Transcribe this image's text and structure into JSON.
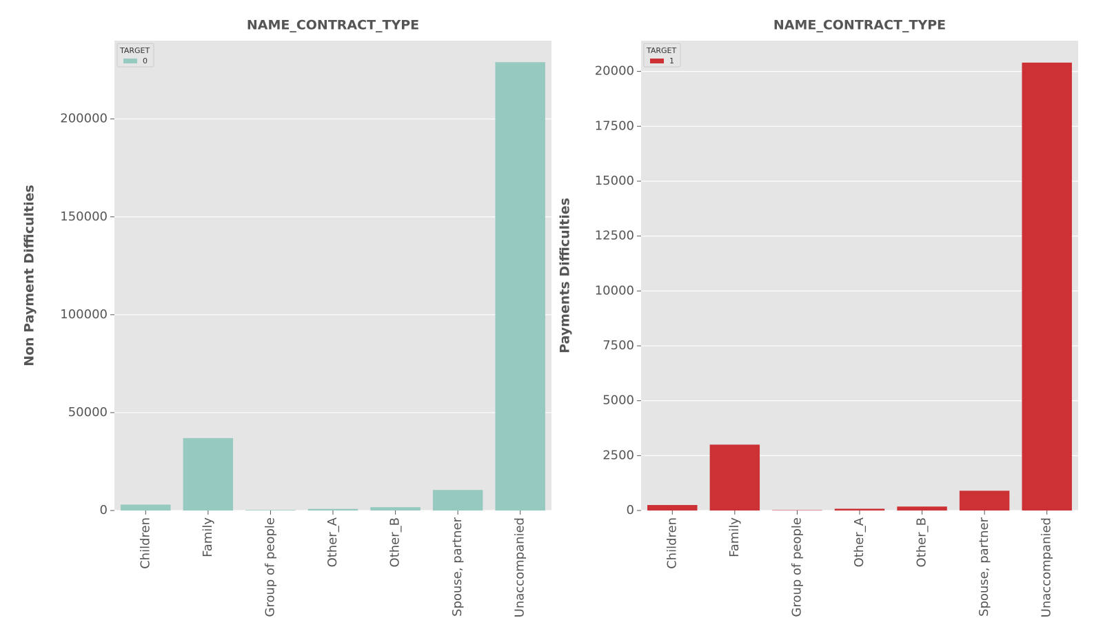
{
  "chart_data": [
    {
      "type": "bar",
      "title": "NAME_CONTRACT_TYPE",
      "xlabel": "",
      "ylabel": "Non Payment Difficulties",
      "categories": [
        "Children",
        "Family",
        "Group of people",
        "Other_A",
        "Other_B",
        "Spouse, partner",
        "Unaccompanied"
      ],
      "series": [
        {
          "name": "0",
          "values": [
            3000,
            37000,
            250,
            800,
            1700,
            10500,
            229000
          ]
        }
      ],
      "ylim": [
        0,
        240000
      ],
      "yticks": [
        0,
        50000,
        100000,
        150000,
        200000
      ],
      "ytick_labels": [
        "0",
        "50000",
        "100000",
        "150000",
        "200000"
      ],
      "legend": {
        "title": "TARGET",
        "position": "top-left"
      },
      "color": "#96c9bf",
      "background": "#e5e5e5",
      "grid": true
    },
    {
      "type": "bar",
      "title": "NAME_CONTRACT_TYPE",
      "xlabel": "",
      "ylabel": "Payments Difficulties",
      "categories": [
        "Children",
        "Family",
        "Group of people",
        "Other_A",
        "Other_B",
        "Spouse, partner",
        "Unaccompanied"
      ],
      "series": [
        {
          "name": "1",
          "values": [
            250,
            3000,
            15,
            80,
            180,
            900,
            20400
          ]
        }
      ],
      "ylim": [
        0,
        21400
      ],
      "yticks": [
        0,
        2500,
        5000,
        7500,
        10000,
        12500,
        15000,
        17500,
        20000
      ],
      "ytick_labels": [
        "0",
        "2500",
        "5000",
        "7500",
        "10000",
        "12500",
        "15000",
        "17500",
        "20000"
      ],
      "legend": {
        "title": "TARGET",
        "position": "top-left"
      },
      "color": "#cc3135",
      "background": "#e5e5e5",
      "grid": true
    }
  ]
}
